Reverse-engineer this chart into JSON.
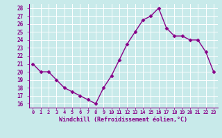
{
  "x": [
    0,
    1,
    2,
    3,
    4,
    5,
    6,
    7,
    8,
    9,
    10,
    11,
    12,
    13,
    14,
    15,
    16,
    17,
    18,
    19,
    20,
    21,
    22,
    23
  ],
  "y": [
    21,
    20,
    20,
    19,
    18,
    17.5,
    17,
    16.5,
    16,
    18,
    19.5,
    21.5,
    23.5,
    25,
    26.5,
    27,
    28,
    25.5,
    24.5,
    24.5,
    24,
    24,
    22.5,
    20
  ],
  "line_color": "#880088",
  "marker": "D",
  "marker_size": 2.5,
  "bg_color": "#c8eaea",
  "grid_color": "#aadddd",
  "xlabel": "Windchill (Refroidissement éolien,°C)",
  "xlabel_color": "#880088",
  "tick_color": "#880088",
  "ylim": [
    15.5,
    28.5
  ],
  "yticks": [
    16,
    17,
    18,
    19,
    20,
    21,
    22,
    23,
    24,
    25,
    26,
    27,
    28
  ],
  "xtick_labels": [
    "0",
    "1",
    "2",
    "3",
    "4",
    "5",
    "6",
    "7",
    "8",
    "9",
    "10",
    "11",
    "12",
    "13",
    "14",
    "15",
    "16",
    "17",
    "18",
    "19",
    "20",
    "21",
    "22",
    "23"
  ],
  "line_width": 1.0
}
